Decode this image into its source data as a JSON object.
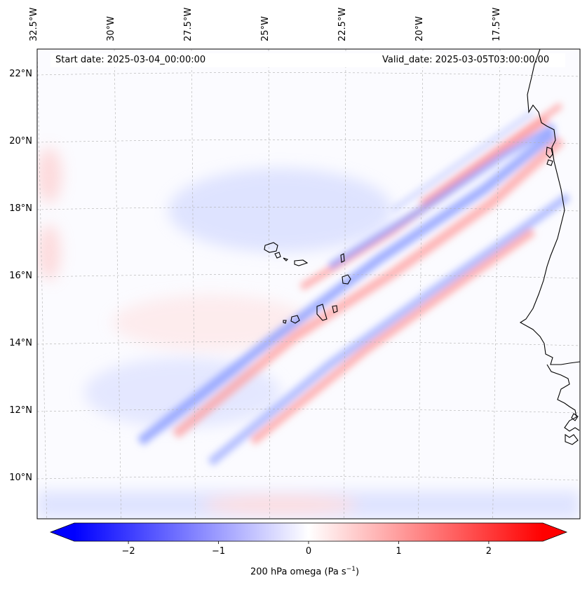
{
  "map": {
    "start_date": "Start date: 2025-03-04_00:00:00",
    "valid_date": "Valid_date: 2025-03-05T03:00:00.00",
    "lon_labels": [
      "32.5°W",
      "30°W",
      "27.5°W",
      "25°W",
      "22.5°W",
      "20°W",
      "17.5°W"
    ],
    "lat_labels": [
      "22°N",
      "20°N",
      "18°N",
      "16°N",
      "14°N",
      "12°N",
      "10°N"
    ],
    "lon_values": [
      -32.5,
      -30,
      -27.5,
      -25,
      -22.5,
      -20,
      -17.5
    ],
    "lat_values": [
      22,
      20,
      18,
      16,
      14,
      12,
      10
    ],
    "extent": {
      "lon_min": -32.6,
      "lon_max": -15.5,
      "lat_min": 8.9,
      "lat_max": 22.8
    },
    "field": "200 hPa omega",
    "units": "Pa s-1"
  },
  "colorbar": {
    "label_main": "200 hPa omega (Pa s",
    "label_exp": "−1",
    "label_close": ")",
    "ticks": [
      "−2",
      "−1",
      "0",
      "1",
      "2"
    ],
    "tick_values": [
      -2,
      -1,
      0,
      1,
      2
    ],
    "vmin": -2.6,
    "vmax": 2.6,
    "cmap": "bwr",
    "neg_color": "#0000ff",
    "pos_color": "#ff0000",
    "mid_color": "#ffffff"
  },
  "colors": {
    "coastline": "#000000",
    "grid": "#b0b0b0",
    "frame": "#000000"
  }
}
